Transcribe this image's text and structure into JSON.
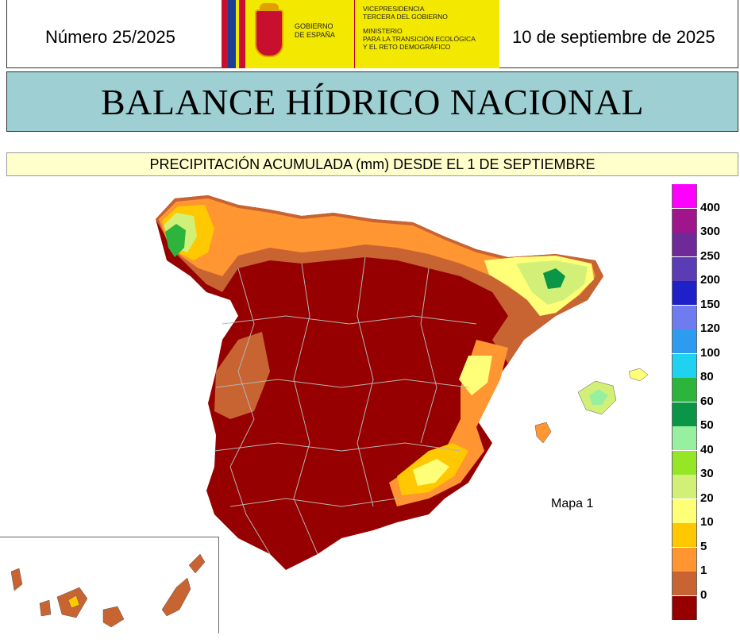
{
  "header": {
    "issue_number": "Número 25/2025",
    "date": "10 de septiembre de 2025",
    "logo": {
      "gov_line1": "GOBIERNO",
      "gov_line2": "DE ESPAÑA",
      "vp_line1": "VICEPRESIDENCIA",
      "vp_line2": "TERCERA DEL GOBIERNO",
      "min_line1": "MINISTERIO",
      "min_line2": "PARA LA TRANSICIÓN ECOLÓGICA",
      "min_line3": "Y EL RETO DEMOGRÁFICO"
    }
  },
  "title": "BALANCE HÍDRICO NACIONAL",
  "subtitle": "PRECIPITACIÓN ACUMULADA (mm) DESDE EL 1 DE SEPTIEMBRE",
  "map_label": "Mapa 1",
  "legend": {
    "classes": [
      {
        "label": "400",
        "color": "#ff00ff"
      },
      {
        "label": "300",
        "color": "#a0148c"
      },
      {
        "label": "250",
        "color": "#6e2a96"
      },
      {
        "label": "200",
        "color": "#5a3cb4"
      },
      {
        "label": "150",
        "color": "#2020c8"
      },
      {
        "label": "120",
        "color": "#6e7cf0"
      },
      {
        "label": "100",
        "color": "#2d9bf0"
      },
      {
        "label": "80",
        "color": "#1ed2f0"
      },
      {
        "label": "60",
        "color": "#2db43c"
      },
      {
        "label": "50",
        "color": "#0a9646"
      },
      {
        "label": "40",
        "color": "#96f0a0"
      },
      {
        "label": "30",
        "color": "#96e628"
      },
      {
        "label": "20",
        "color": "#d2f078"
      },
      {
        "label": "10",
        "color": "#ffff78"
      },
      {
        "label": "5",
        "color": "#ffc800"
      },
      {
        "label": "1",
        "color": "#ff9632"
      },
      {
        "label": "0",
        "color": "#c86432"
      },
      {
        "label": "",
        "color": "#960000"
      }
    ]
  },
  "colors": {
    "dry": "#960000",
    "low": "#c86432",
    "orange": "#ff9632",
    "amber": "#ffc800",
    "yellow": "#ffff78",
    "lime": "#d2f078",
    "green_light": "#96f0a0",
    "green": "#2db43c",
    "green_dark": "#0a9646",
    "border": "#b4b4b4"
  }
}
